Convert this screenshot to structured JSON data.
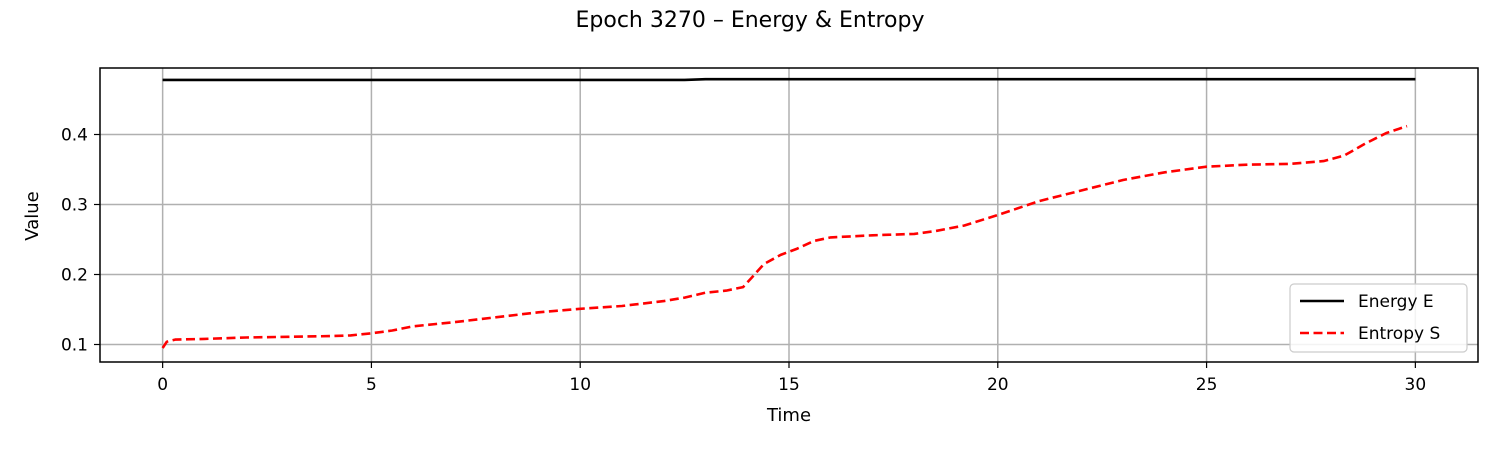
{
  "chart_data": {
    "type": "line",
    "title": "Epoch 3270 – Energy & Entropy",
    "xlabel": "Time",
    "ylabel": "Value",
    "xlim": [
      -1.5,
      31.5
    ],
    "ylim": [
      0.075,
      0.495
    ],
    "xticks": [
      0,
      5,
      10,
      15,
      20,
      25,
      30
    ],
    "xtick_labels": [
      "0",
      "5",
      "10",
      "15",
      "20",
      "25",
      "30"
    ],
    "yticks": [
      0.1,
      0.2,
      0.3,
      0.4
    ],
    "ytick_labels": [
      "0.1",
      "0.2",
      "0.3",
      "0.4"
    ],
    "grid": true,
    "legend_position": "bottom-right",
    "series": [
      {
        "name": "Energy E",
        "color": "#000000",
        "style": "solid",
        "points": [
          [
            0,
            0.478
          ],
          [
            5,
            0.478
          ],
          [
            10,
            0.478
          ],
          [
            12.5,
            0.478
          ],
          [
            13,
            0.479
          ],
          [
            15,
            0.479
          ],
          [
            20,
            0.479
          ],
          [
            25,
            0.479
          ],
          [
            30,
            0.479
          ]
        ]
      },
      {
        "name": "Entropy S",
        "color": "#ff0000",
        "style": "dashed",
        "points": [
          [
            0,
            0.095
          ],
          [
            0.1,
            0.104
          ],
          [
            0.3,
            0.107
          ],
          [
            1,
            0.108
          ],
          [
            2,
            0.11
          ],
          [
            3,
            0.111
          ],
          [
            4,
            0.112
          ],
          [
            4.5,
            0.113
          ],
          [
            5,
            0.116
          ],
          [
            5.5,
            0.12
          ],
          [
            6,
            0.126
          ],
          [
            7,
            0.132
          ],
          [
            8,
            0.139
          ],
          [
            9,
            0.146
          ],
          [
            10,
            0.151
          ],
          [
            11,
            0.155
          ],
          [
            12,
            0.162
          ],
          [
            12.5,
            0.167
          ],
          [
            13,
            0.174
          ],
          [
            13.5,
            0.177
          ],
          [
            13.9,
            0.182
          ],
          [
            14.1,
            0.195
          ],
          [
            14.4,
            0.215
          ],
          [
            14.8,
            0.228
          ],
          [
            15.2,
            0.237
          ],
          [
            15.6,
            0.248
          ],
          [
            16,
            0.253
          ],
          [
            17,
            0.256
          ],
          [
            18,
            0.258
          ],
          [
            18.5,
            0.262
          ],
          [
            19.2,
            0.27
          ],
          [
            20,
            0.285
          ],
          [
            21,
            0.305
          ],
          [
            22,
            0.32
          ],
          [
            23,
            0.335
          ],
          [
            24,
            0.346
          ],
          [
            25,
            0.354
          ],
          [
            26,
            0.357
          ],
          [
            27,
            0.358
          ],
          [
            27.8,
            0.362
          ],
          [
            28.3,
            0.37
          ],
          [
            28.8,
            0.387
          ],
          [
            29.3,
            0.402
          ],
          [
            29.8,
            0.412
          ]
        ]
      }
    ]
  }
}
